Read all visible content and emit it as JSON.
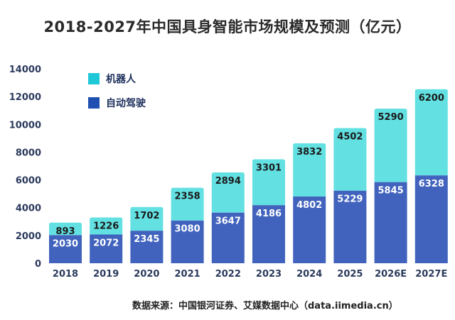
{
  "chart_data": {
    "type": "bar",
    "stacked": true,
    "title": "2018-2027年中国具身智能市场规模及预测（亿元）",
    "xlabel": "",
    "ylabel": "",
    "ylim": [
      0,
      14000
    ],
    "yticks": [
      0,
      2000,
      4000,
      6000,
      8000,
      10000,
      12000,
      14000
    ],
    "grid": false,
    "legend_position": "top-left",
    "categories": [
      "2018",
      "2019",
      "2020",
      "2021",
      "2022",
      "2023",
      "2024",
      "2025",
      "2026E",
      "2027E"
    ],
    "series": [
      {
        "name": "自动驾驶",
        "color": "#4163bd",
        "label_color": "#ffffff",
        "values": [
          2030,
          2072,
          2345,
          3080,
          3647,
          4186,
          4802,
          5229,
          5845,
          6328
        ]
      },
      {
        "name": "机器人",
        "color": "#63e0e2",
        "label_color": "#1a1a1a",
        "values": [
          893,
          1226,
          1702,
          2358,
          2894,
          3301,
          3832,
          4502,
          5290,
          6200
        ]
      }
    ],
    "legend": [
      {
        "name": "机器人",
        "color": "#1fc8d6"
      },
      {
        "name": "自动驾驶",
        "color": "#1f4fb0"
      }
    ]
  },
  "source": "数据来源：中国银河证券、艾媒数据中心（data.iimedia.cn）"
}
